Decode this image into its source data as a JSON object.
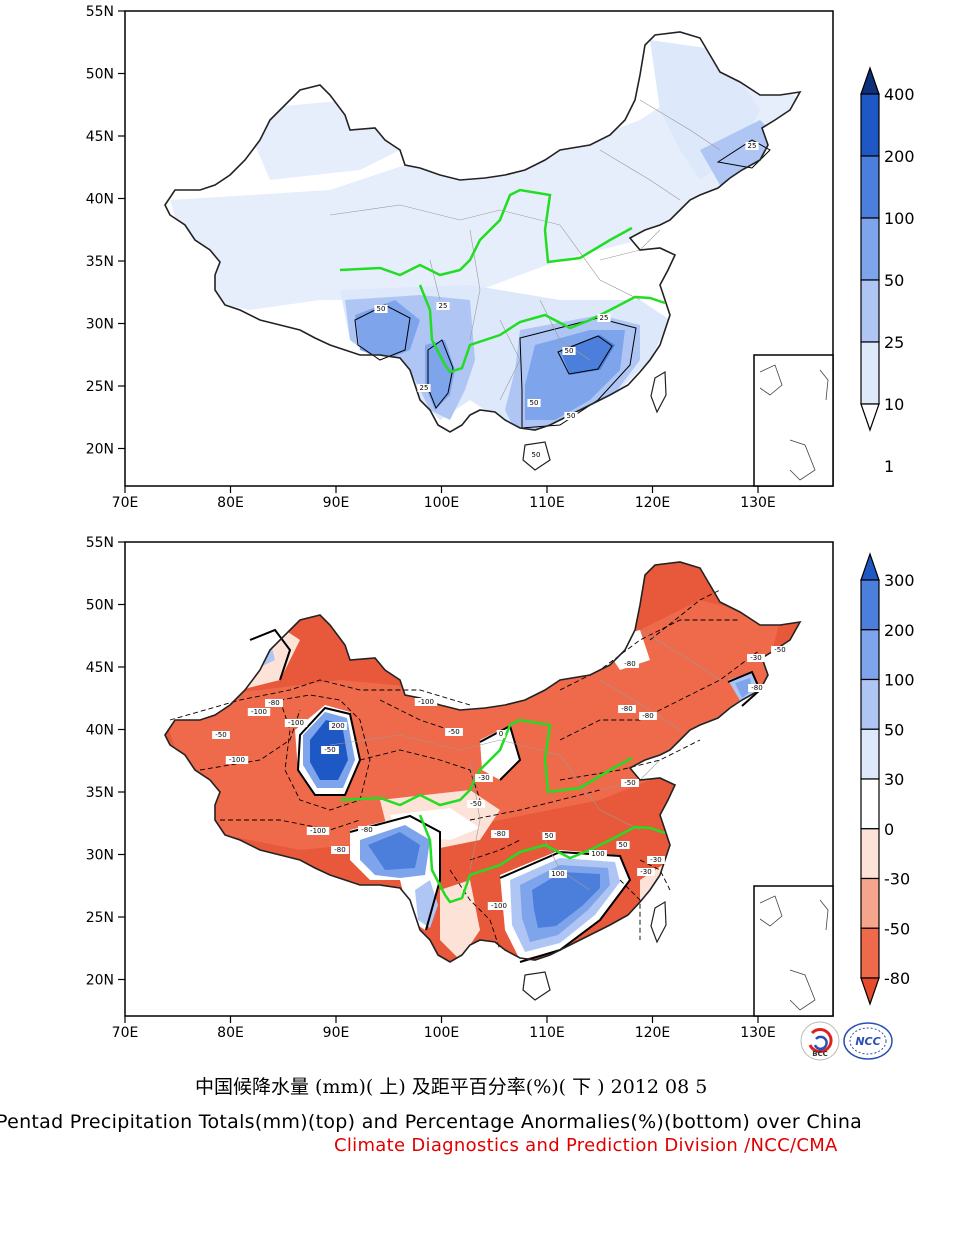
{
  "caption": {
    "chinese": "中国候降水量 (mm)( 上) 及距平百分率(%)( 下 ) 2012 08 5",
    "english": "Pentad Precipitation Totals(mm)(top) and Percentage Anormalies(%)(bottom) over China",
    "division": "Climate Diagnostics and Prediction Division /NCC/CMA"
  },
  "axes": {
    "lat_labels": [
      "55N",
      "50N",
      "45N",
      "40N",
      "35N",
      "30N",
      "25N",
      "20N"
    ],
    "lon_labels": [
      "70E",
      "80E",
      "90E",
      "100E",
      "110E",
      "120E",
      "130E"
    ]
  },
  "top_map": {
    "colorbar_labels": [
      "400",
      "200",
      "100",
      "50",
      "25",
      "10",
      "1"
    ],
    "colorbar_colors": [
      "#0d2f7c",
      "#1d58c5",
      "#4c7fdc",
      "#7ea4ec",
      "#afc6f5",
      "#dde8fb",
      "#ffffff"
    ],
    "contour_labels": [
      "50",
      "25",
      "25",
      "50",
      "50",
      "50",
      "50",
      "25",
      "25"
    ]
  },
  "bottom_map": {
    "colorbar_labels": [
      "300",
      "200",
      "100",
      "50",
      "30",
      "0",
      "-30",
      "-50",
      "-80"
    ],
    "colorbar_colors": [
      "#1d58c5",
      "#4c7fdc",
      "#7ea4ec",
      "#afc6f5",
      "#dde8fb",
      "#ffffff",
      "#fde2d8",
      "#f5a58b",
      "#ee6a4a",
      "#e84a2c"
    ],
    "contour_labels": [
      "-100",
      "-80",
      "-50",
      "-100",
      "-100",
      "-100",
      "200",
      "-50",
      "-80",
      "-80",
      "-100",
      "-50",
      "-30",
      "-50",
      "100",
      "-80",
      "-100",
      "50",
      "-80",
      "-30",
      "-50",
      "-80",
      "-50",
      "-80",
      "-80",
      "-30",
      "0",
      "50",
      "100",
      "-30"
    ]
  },
  "logos": [
    "BCC",
    "NCC"
  ]
}
